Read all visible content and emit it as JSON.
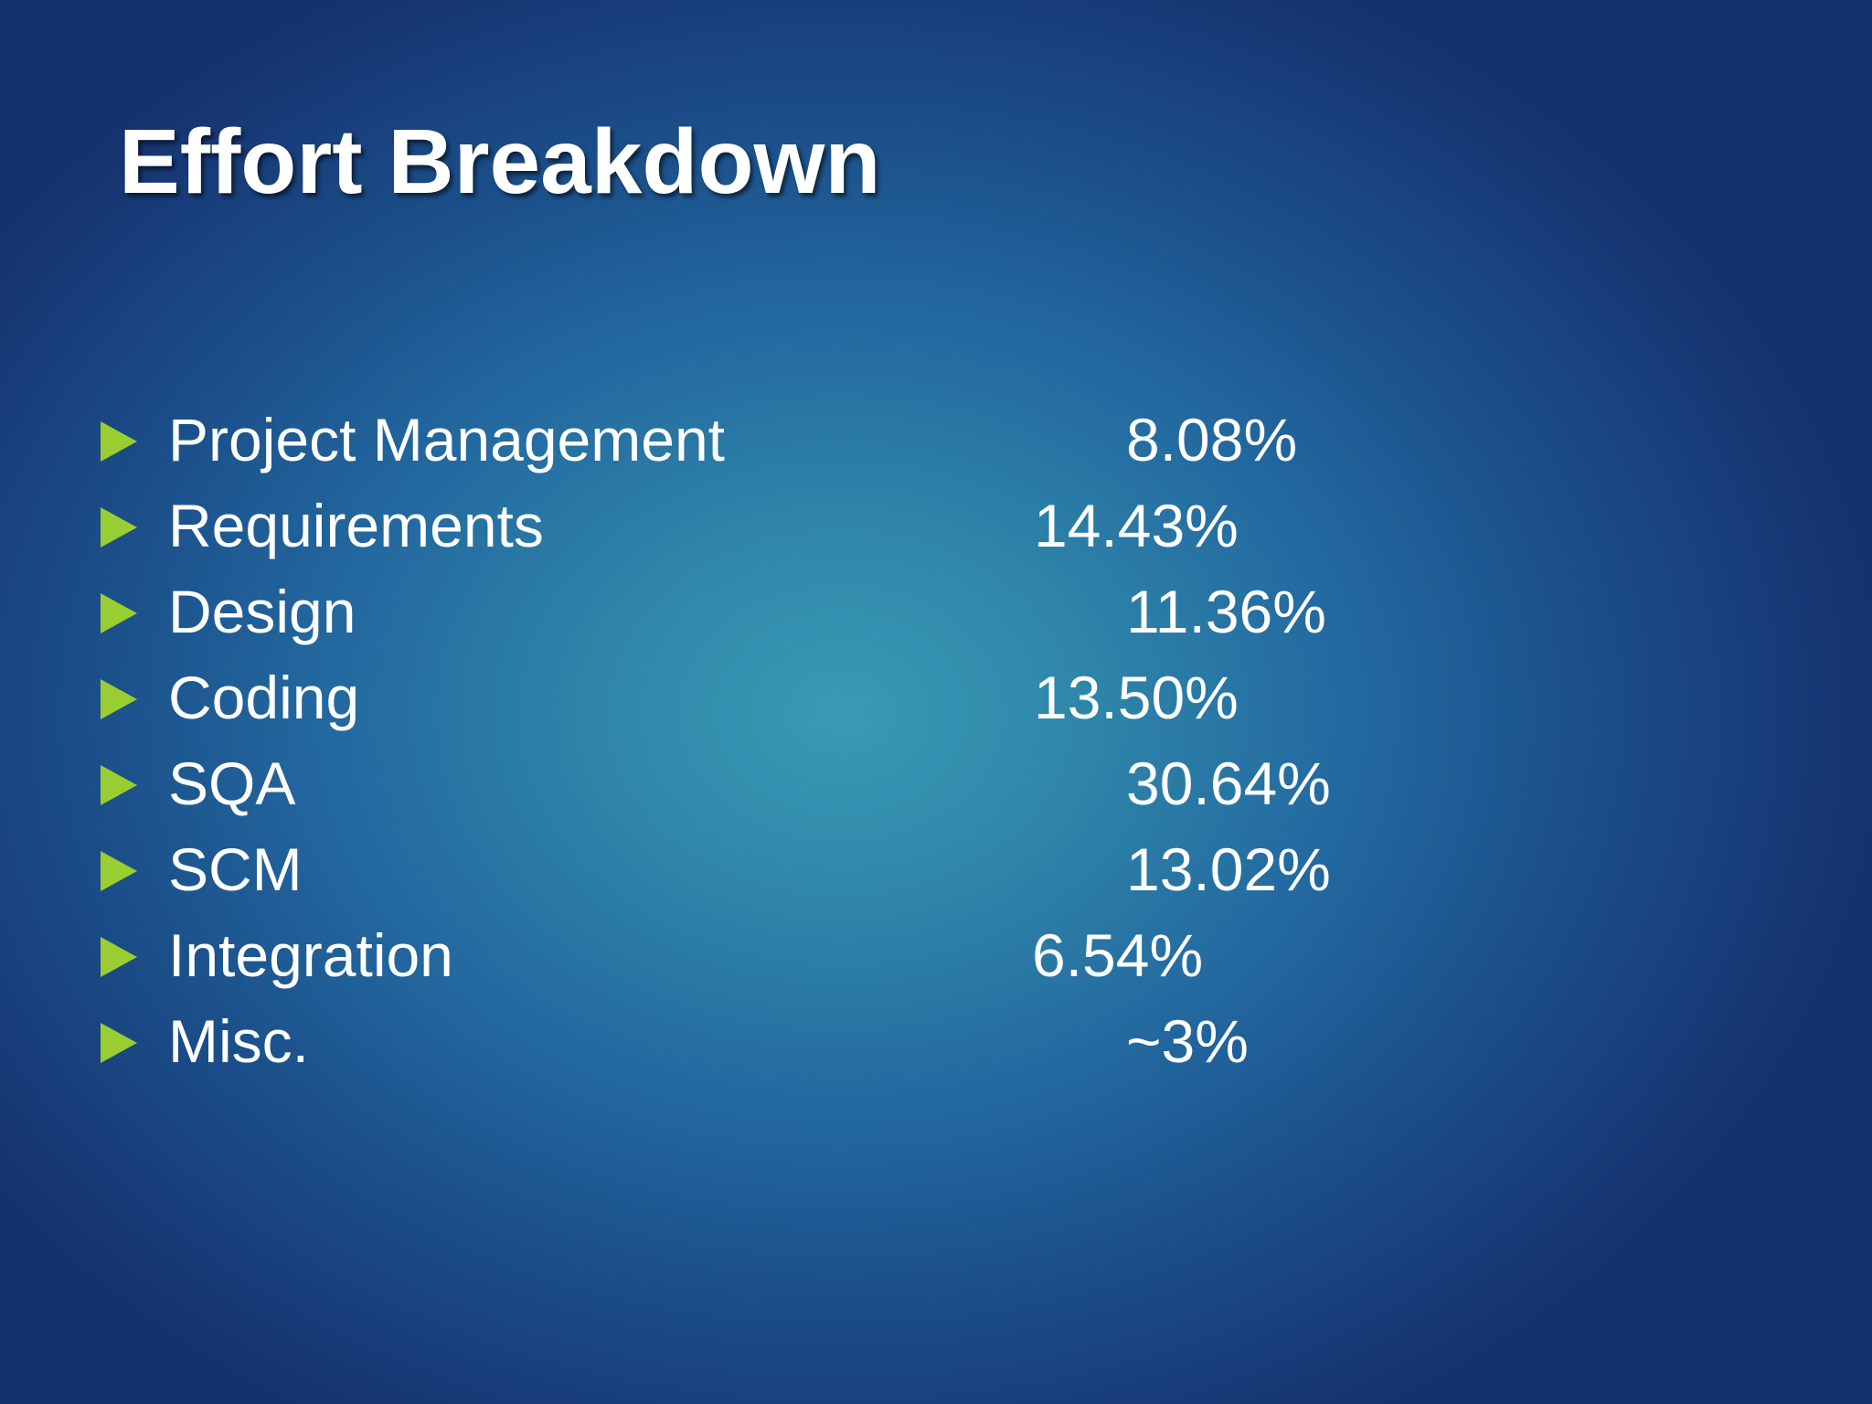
{
  "slide": {
    "title": "Effort Breakdown",
    "bullet_color": "#9acd32",
    "items": [
      {
        "label": "Project Management",
        "value": "8.08%"
      },
      {
        "label": "Requirements",
        "value": "14.43%"
      },
      {
        "label": "Design",
        "value": "11.36%"
      },
      {
        "label": "Coding",
        "value": "13.50%"
      },
      {
        "label": "SQA",
        "value": "30.64%"
      },
      {
        "label": "SCM",
        "value": "13.02%"
      },
      {
        "label": "Integration",
        "value": "6.54%"
      },
      {
        "label": "Misc.",
        "value": "~3%"
      }
    ]
  }
}
